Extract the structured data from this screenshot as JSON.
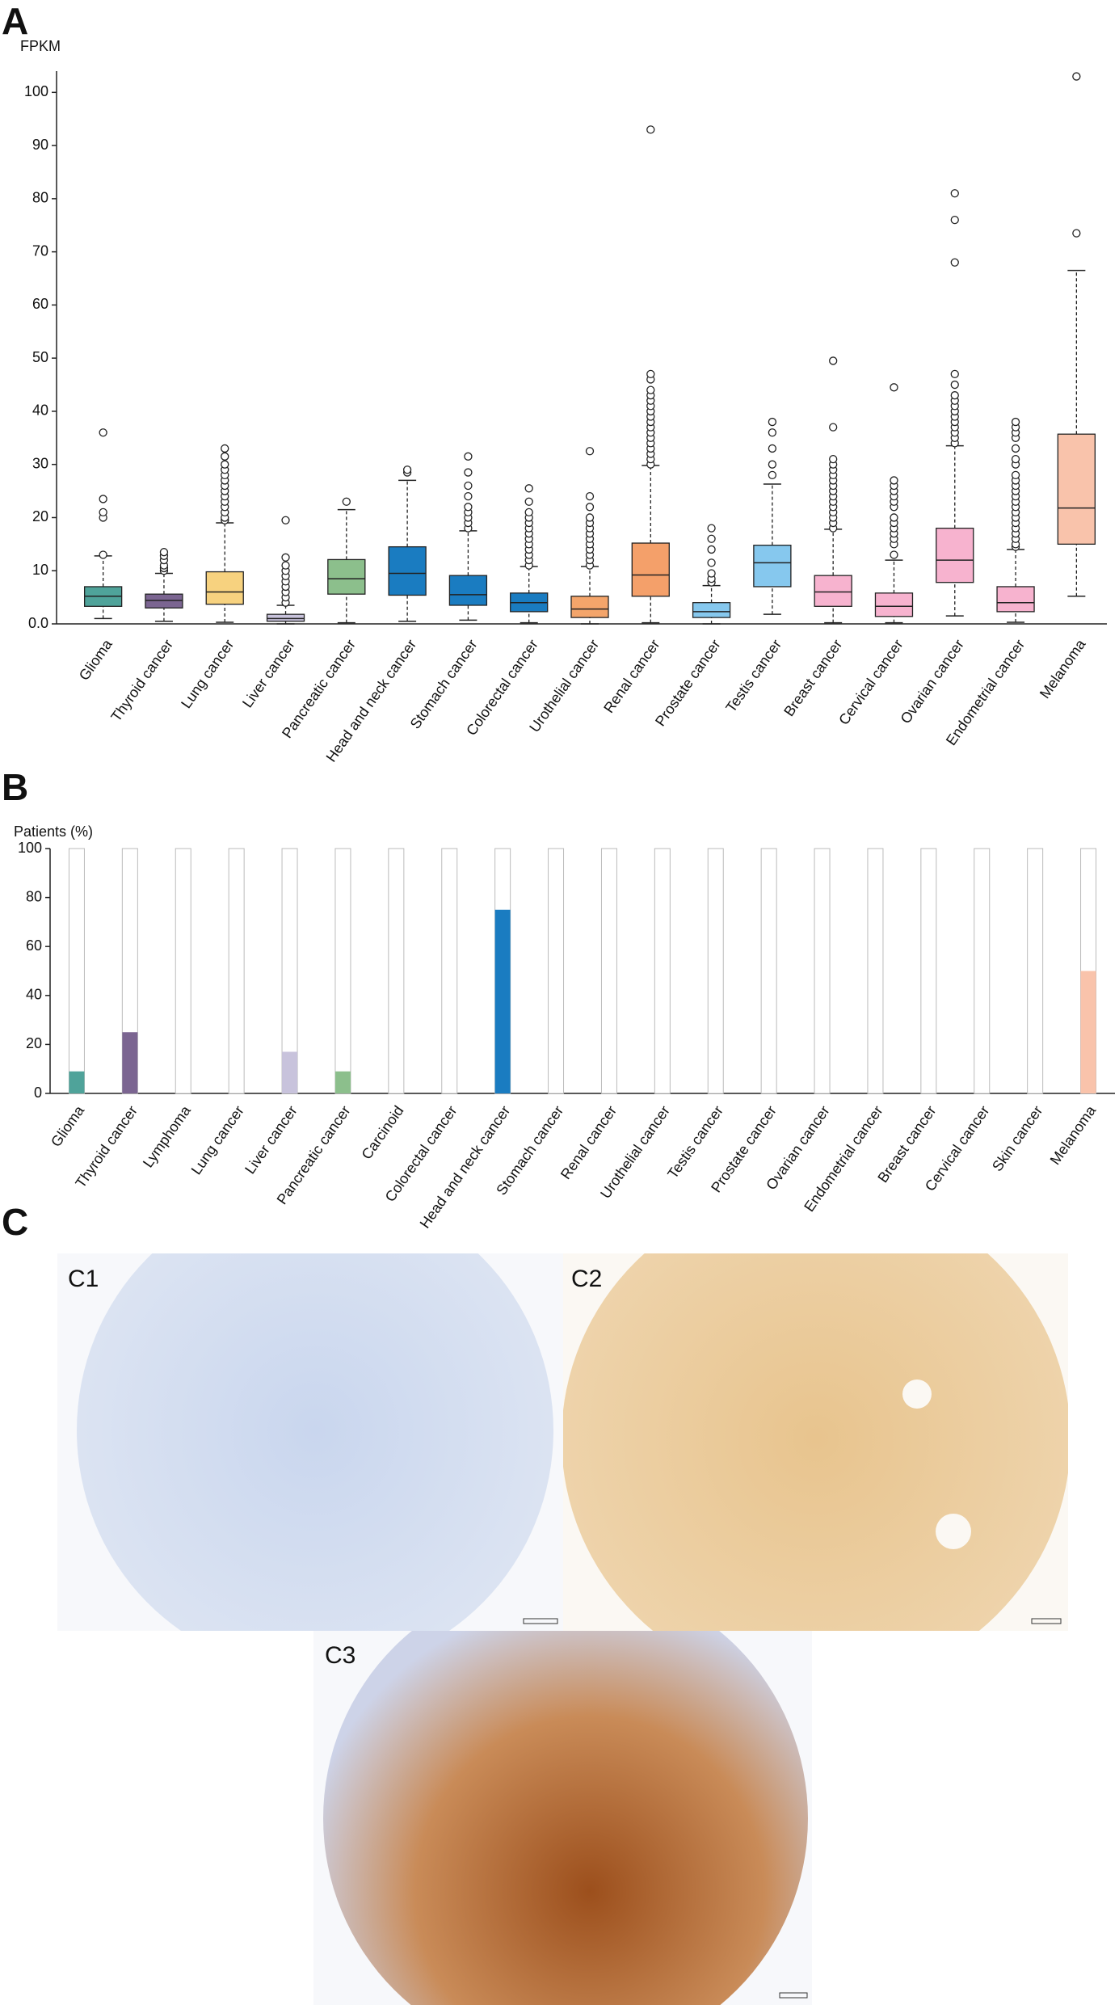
{
  "panel_labels": [
    "A",
    "B",
    "C"
  ],
  "chart_data": [
    {
      "type": "box",
      "y_label": "FPKM",
      "categories": [
        "Glioma",
        "Thyroid cancer",
        "Lung cancer",
        "Liver cancer",
        "Pancreatic cancer",
        "Head and neck cancer",
        "Stomach cancer",
        "Colorectal cancer",
        "Urothelial cancer",
        "Renal cancer",
        "Prostate cancer",
        "Testis cancer",
        "Breast cancer",
        "Cervical cancer",
        "Ovarian cancer",
        "Endometrial cancer",
        "Melanoma"
      ],
      "whislo": [
        1,
        0.5,
        0.3,
        0,
        0.2,
        0.5,
        0.7,
        0.2,
        0,
        0.2,
        0,
        1.8,
        0.2,
        0.2,
        1.5,
        0.3,
        5.2
      ],
      "q1": [
        3.3,
        3.0,
        3.7,
        0.5,
        5.6,
        5.4,
        3.5,
        2.3,
        1.2,
        5.2,
        1.2,
        7.0,
        3.3,
        1.4,
        7.8,
        2.3,
        15
      ],
      "median": [
        5.2,
        4.4,
        6.0,
        1,
        8.5,
        9.5,
        5.5,
        4.0,
        2.8,
        9.2,
        2.3,
        11.5,
        6.0,
        3.3,
        12,
        4.0,
        21.8
      ],
      "q3": [
        7.0,
        5.6,
        9.8,
        1.8,
        12.1,
        14.5,
        9.1,
        5.8,
        5.2,
        15.2,
        4.0,
        14.8,
        9.1,
        5.8,
        18,
        7.0,
        35.7
      ],
      "whishi": [
        12.8,
        9.5,
        19,
        3.5,
        21.5,
        27,
        17.5,
        10.8,
        10.8,
        29.8,
        7.2,
        26.3,
        17.8,
        12,
        33.5,
        14,
        66.5
      ],
      "outliers": [
        [
          13,
          20,
          21,
          23.5,
          36
        ],
        [
          10,
          10.5,
          11,
          12,
          12.8,
          13.5
        ],
        [
          19.5,
          20,
          21,
          22,
          23,
          24,
          25,
          26,
          27,
          28,
          29,
          30,
          31.5,
          33
        ],
        [
          4,
          5,
          6,
          7,
          8,
          9,
          10,
          11,
          12.5,
          19.5
        ],
        [
          23
        ],
        [
          28.5,
          29
        ],
        [
          18,
          19,
          20,
          21,
          22,
          24,
          26,
          28.5,
          31.5
        ],
        [
          11,
          12,
          13,
          14,
          15,
          16,
          17,
          18,
          19,
          20,
          21,
          23,
          25.5
        ],
        [
          11,
          12,
          13,
          14,
          15,
          16,
          17,
          18,
          19,
          20,
          22,
          24,
          32.5
        ],
        [
          30,
          31,
          32,
          33,
          34,
          35,
          36,
          37,
          38,
          39,
          40,
          41,
          42,
          43,
          44,
          46,
          47,
          93
        ],
        [
          7.8,
          8.5,
          9.5,
          11.5,
          14,
          16,
          18
        ],
        [
          28,
          30,
          33,
          36,
          38
        ],
        [
          18,
          19,
          20,
          21,
          22,
          23,
          24,
          25,
          26,
          27,
          28,
          29,
          30,
          31,
          37,
          49.5
        ],
        [
          13,
          15,
          16,
          17,
          18,
          19,
          20,
          22,
          23,
          24,
          25,
          26,
          27,
          44.5
        ],
        [
          34,
          35,
          36,
          37,
          38,
          39,
          40,
          41,
          42,
          43,
          45,
          47,
          68,
          76,
          81
        ],
        [
          14.5,
          15,
          16,
          17,
          18,
          19,
          20,
          21,
          22,
          23,
          24,
          25,
          26,
          27,
          28,
          30,
          31,
          33,
          35,
          36,
          37,
          38
        ],
        [
          73.5,
          103
        ]
      ],
      "colors": [
        "#4fa39a",
        "#7b6591",
        "#f7d27f",
        "#c8c3dc",
        "#8cbf8c",
        "#1a7cc1",
        "#1a7cc1",
        "#1a7cc1",
        "#f4a56b",
        "#f4a06a",
        "#86c8ee",
        "#86c8ee",
        "#f7b3cf",
        "#f7b3cf",
        "#f7b3cf",
        "#f7b3cf",
        "#f9c3ab"
      ],
      "ylim": [
        0,
        104
      ],
      "yticks": [
        {
          "value": 0,
          "label": "0.0"
        },
        10,
        20,
        30,
        40,
        50,
        60,
        70,
        80,
        90,
        100
      ]
    },
    {
      "type": "bar",
      "y_label": "Patients (%)",
      "categories": [
        "Glioma",
        "Thyroid cancer",
        "Lymphoma",
        "Lung cancer",
        "Liver cancer",
        "Pancreatic cancer",
        "Carcinoid",
        "Colorectal cancer",
        "Head and neck cancer",
        "Stomach cancer",
        "Renal cancer",
        "Urothelial cancer",
        "Testis cancer",
        "Prostate cancer",
        "Ovarian cancer",
        "Endometrial cancer",
        "Breast cancer",
        "Cervical cancer",
        "Skin cancer",
        "Melanoma"
      ],
      "values": [
        9,
        25,
        0,
        0,
        17,
        9,
        0,
        0,
        75,
        0,
        0,
        0,
        0,
        0,
        0,
        0,
        0,
        0,
        0,
        50
      ],
      "colors": [
        "#4fa39a",
        "#7b6591",
        "#c8c3dc",
        "#f7d27f",
        "#c8c3dc",
        "#8cbf8c",
        "#c8c3dc",
        "#1a7cc1",
        "#1a7cc1",
        "#1a7cc1",
        "#f4a06a",
        "#f4a56b",
        "#86c8ee",
        "#86c8ee",
        "#f7b3cf",
        "#f7b3cf",
        "#f7b3cf",
        "#f7b3cf",
        "#f9c3ab",
        "#f9c3ab"
      ],
      "ylim": [
        0,
        100
      ],
      "yticks": [
        0,
        20,
        40,
        60,
        80,
        100
      ]
    }
  ],
  "images": [
    {
      "label": "C1"
    },
    {
      "label": "C2"
    },
    {
      "label": "C3"
    }
  ]
}
